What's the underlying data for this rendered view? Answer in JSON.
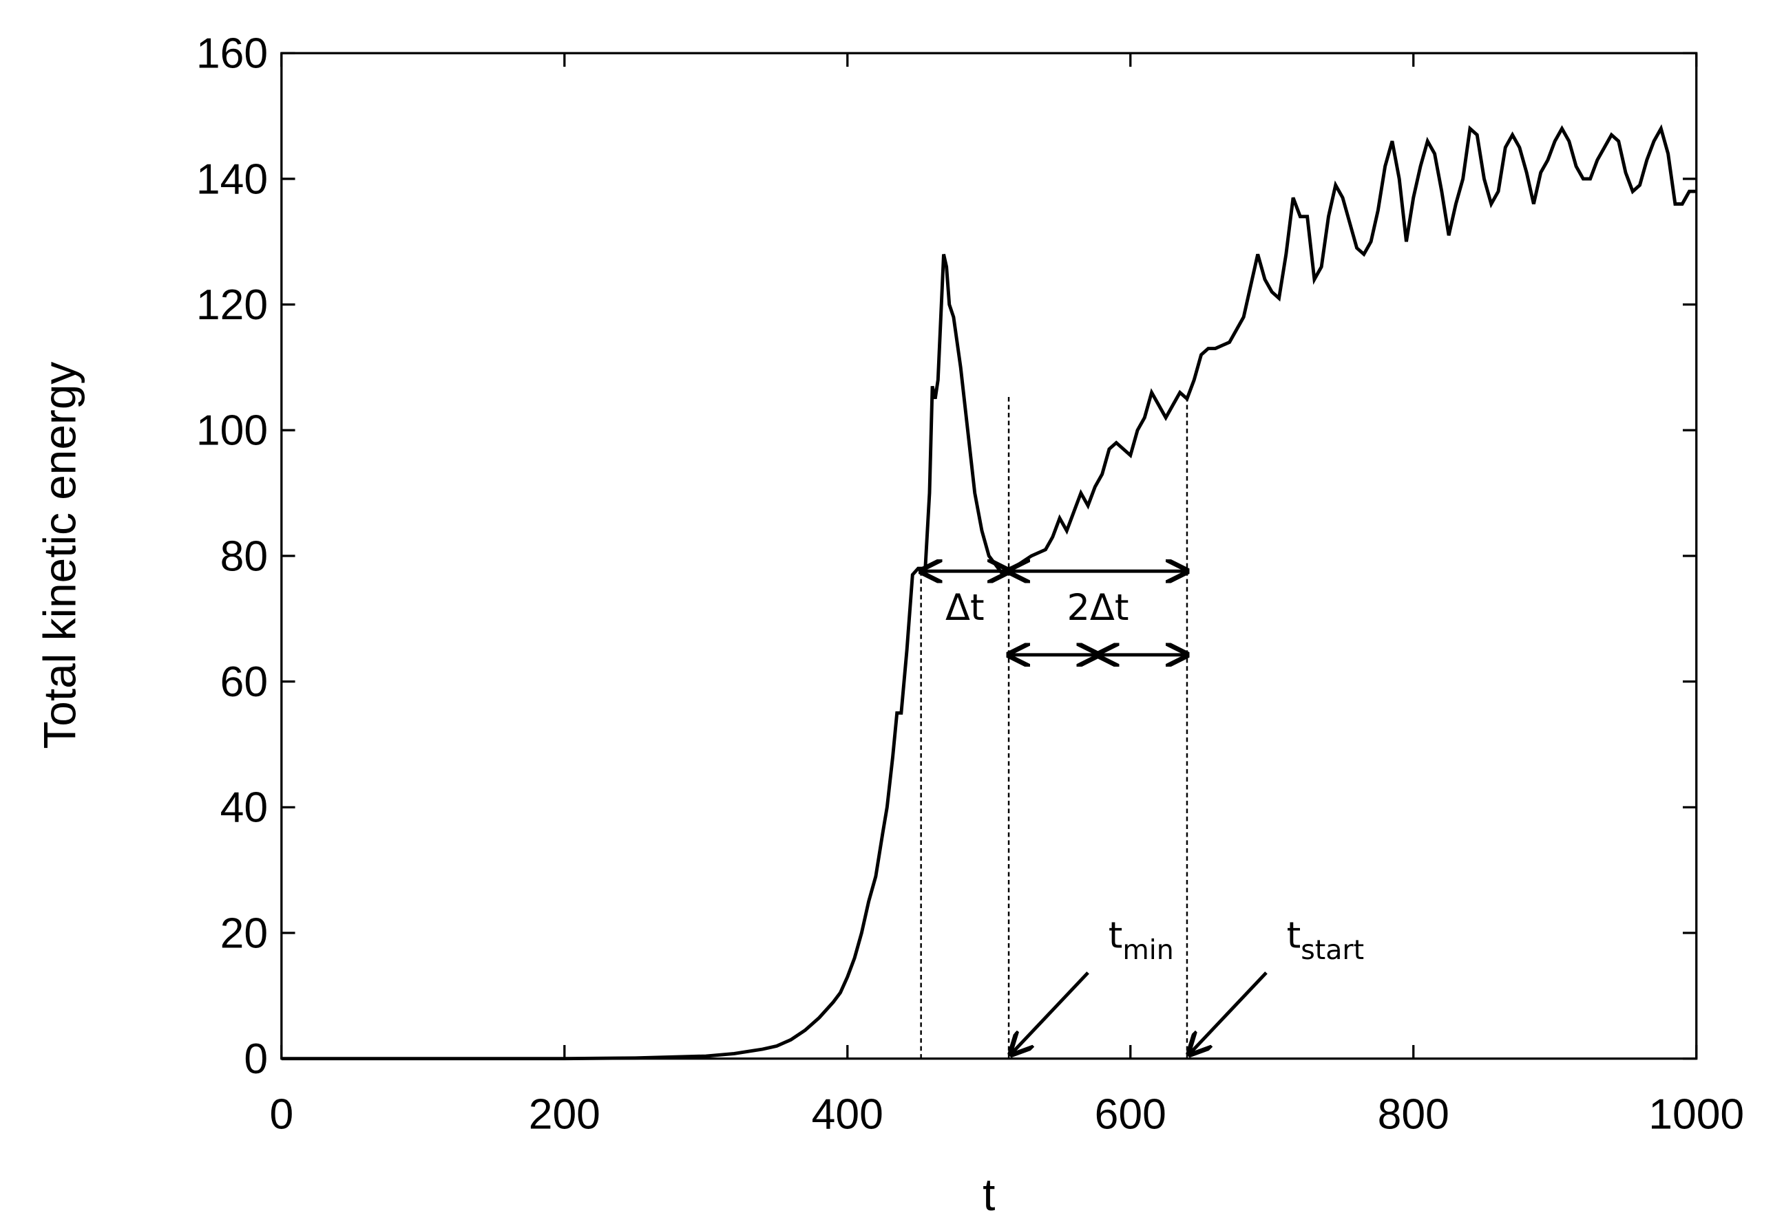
{
  "chart_data": {
    "type": "line",
    "x_label": "t",
    "y_label": "Total kinetic energy",
    "x": [
      0,
      50,
      100,
      150,
      200,
      250,
      300,
      320,
      340,
      350,
      360,
      370,
      380,
      390,
      395,
      400,
      405,
      410,
      415,
      420,
      425,
      428,
      432,
      435,
      438,
      442,
      446,
      450,
      455,
      458,
      460,
      462,
      464,
      466,
      468,
      470,
      472,
      475,
      480,
      485,
      490,
      495,
      500,
      505,
      510,
      515,
      520,
      530,
      540,
      545,
      550,
      555,
      560,
      565,
      570,
      575,
      580,
      585,
      590,
      595,
      600,
      605,
      610,
      615,
      620,
      625,
      630,
      635,
      640,
      645,
      650,
      655,
      660,
      670,
      680,
      685,
      690,
      695,
      700,
      705,
      710,
      715,
      720,
      725,
      730,
      735,
      740,
      745,
      750,
      755,
      760,
      765,
      770,
      775,
      780,
      785,
      790,
      795,
      800,
      805,
      810,
      815,
      820,
      825,
      830,
      835,
      840,
      845,
      850,
      855,
      860,
      865,
      870,
      875,
      880,
      885,
      890,
      895,
      900,
      905,
      910,
      915,
      920,
      925,
      930,
      935,
      940,
      945,
      950,
      955,
      960,
      965,
      970,
      975,
      980,
      985,
      990,
      995,
      1000
    ],
    "values": [
      0,
      0,
      0,
      0,
      0,
      0.1,
      0.4,
      0.8,
      1.5,
      2,
      3,
      4.5,
      6.5,
      9,
      10.5,
      13,
      16,
      20,
      25,
      29,
      36,
      40,
      48,
      55,
      55,
      65,
      77,
      78,
      78,
      90,
      107,
      105,
      108,
      118,
      128,
      126,
      120,
      118,
      110,
      100,
      90,
      84,
      80,
      78.5,
      77,
      78,
      78.5,
      80,
      81,
      83,
      86,
      84,
      87,
      90,
      88,
      91,
      93,
      97,
      98,
      97,
      96,
      100,
      102,
      106,
      104,
      102,
      104,
      106,
      105,
      108,
      112,
      113,
      113,
      114,
      118,
      123,
      128,
      124,
      122,
      121,
      128,
      137,
      134,
      134,
      124,
      126,
      134,
      139,
      137,
      133,
      129,
      128,
      130,
      135,
      142,
      146,
      140,
      130,
      137,
      142,
      146,
      144,
      138,
      131,
      136,
      140,
      148,
      147,
      140,
      136,
      138,
      145,
      147,
      145,
      141,
      136,
      141,
      143,
      146,
      148,
      146,
      142,
      140,
      140,
      143,
      145,
      147,
      146,
      141,
      138,
      139,
      143,
      146,
      148,
      144,
      136,
      136,
      138,
      138
    ],
    "color": "#000000",
    "xlim": [
      0,
      1000
    ],
    "xticks": [
      0,
      200,
      400,
      600,
      800,
      1000
    ],
    "ylim": [
      0,
      160
    ],
    "yticks": [
      0,
      20,
      40,
      60,
      80,
      100,
      120,
      140,
      160
    ],
    "vlines": [
      452,
      514,
      640
    ],
    "annotations": {
      "dt": "Δt",
      "two_dt": "2Δt",
      "tmin": {
        "base": "t",
        "sub": "min"
      },
      "tstart": {
        "base": "t",
        "sub": "start"
      }
    }
  }
}
